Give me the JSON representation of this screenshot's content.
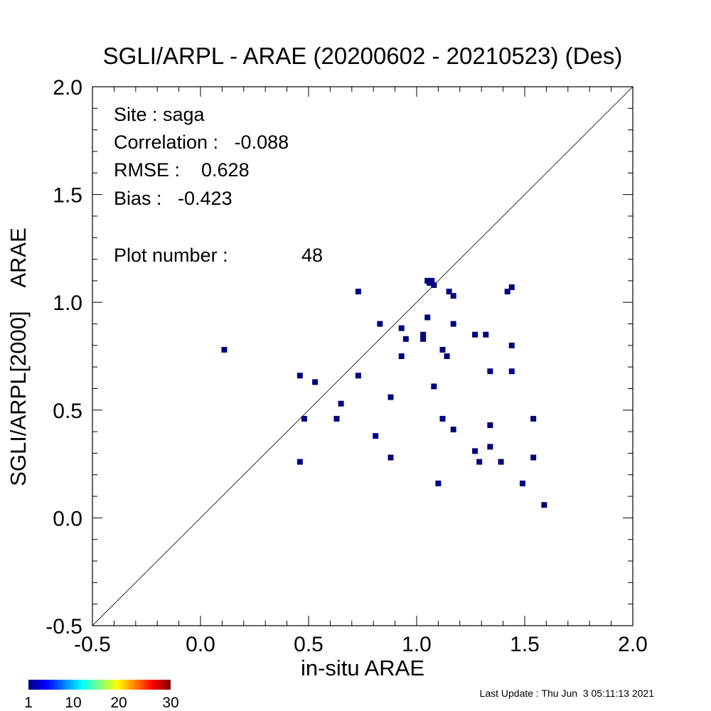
{
  "chart_data": {
    "type": "scatter",
    "title": "SGLI/ARPL - ARAE (20200602 - 20210523) (Des)",
    "xlabel": "in-situ ARAE",
    "ylabel": "SGLI/ARPL[2000]    ARAE",
    "xlim": [
      -0.5,
      2.0
    ],
    "ylim": [
      -0.5,
      2.0
    ],
    "xticks": [
      -0.5,
      0.0,
      0.5,
      1.0,
      1.5,
      2.0
    ],
    "yticks": [
      -0.5,
      0.0,
      0.5,
      1.0,
      1.5,
      2.0
    ],
    "xtick_labels": [
      "-0.5",
      "0.0",
      "0.5",
      "1.0",
      "1.5",
      "2.0"
    ],
    "ytick_labels": [
      "-0.5",
      "0.0",
      "0.5",
      "1.0",
      "1.5",
      "2.0"
    ],
    "one_to_one_line": true,
    "marker_color": "#00007f",
    "stats": {
      "site": "Site : saga",
      "correlation": "Correlation :   -0.088",
      "rmse": "RMSE :    0.628",
      "bias": "Bias :   -0.423",
      "plot_number_label": "Plot number :",
      "plot_number_value": "48"
    },
    "points": [
      [
        0.11,
        0.78
      ],
      [
        0.46,
        0.66
      ],
      [
        0.46,
        0.26
      ],
      [
        0.48,
        0.46
      ],
      [
        0.53,
        0.63
      ],
      [
        0.63,
        0.46
      ],
      [
        0.65,
        0.53
      ],
      [
        0.73,
        1.05
      ],
      [
        0.73,
        0.66
      ],
      [
        0.81,
        0.38
      ],
      [
        0.83,
        0.9
      ],
      [
        0.88,
        0.56
      ],
      [
        0.88,
        0.28
      ],
      [
        0.93,
        0.88
      ],
      [
        0.93,
        0.75
      ],
      [
        0.95,
        0.83
      ],
      [
        1.03,
        0.85
      ],
      [
        1.03,
        0.83
      ],
      [
        1.05,
        1.1
      ],
      [
        1.05,
        0.93
      ],
      [
        1.07,
        1.1
      ],
      [
        1.08,
        1.08
      ],
      [
        1.08,
        0.61
      ],
      [
        1.1,
        0.16
      ],
      [
        1.12,
        0.46
      ],
      [
        1.12,
        0.78
      ],
      [
        1.14,
        0.75
      ],
      [
        1.15,
        1.05
      ],
      [
        1.17,
        1.03
      ],
      [
        1.17,
        0.9
      ],
      [
        1.17,
        0.41
      ],
      [
        1.27,
        0.85
      ],
      [
        1.27,
        0.31
      ],
      [
        1.29,
        0.26
      ],
      [
        1.32,
        0.85
      ],
      [
        1.34,
        0.68
      ],
      [
        1.34,
        0.43
      ],
      [
        1.34,
        0.33
      ],
      [
        1.39,
        0.26
      ],
      [
        1.42,
        1.05
      ],
      [
        1.44,
        1.07
      ],
      [
        1.44,
        0.8
      ],
      [
        1.44,
        0.68
      ],
      [
        1.49,
        0.16
      ],
      [
        1.54,
        0.46
      ],
      [
        1.54,
        0.28
      ],
      [
        1.59,
        0.06
      ],
      [
        1.06,
        1.09
      ]
    ]
  },
  "colorbar": {
    "labels": [
      "1",
      "10",
      "20",
      "30"
    ],
    "colors": [
      "#00007f",
      "#0000ff",
      "#007fff",
      "#00ffff",
      "#7fff7f",
      "#ffff00",
      "#ff7f00",
      "#ff0000",
      "#7f0000"
    ]
  },
  "footer": {
    "last_update": "Last Update : Thu Jun  3 05:11:13 2021"
  }
}
